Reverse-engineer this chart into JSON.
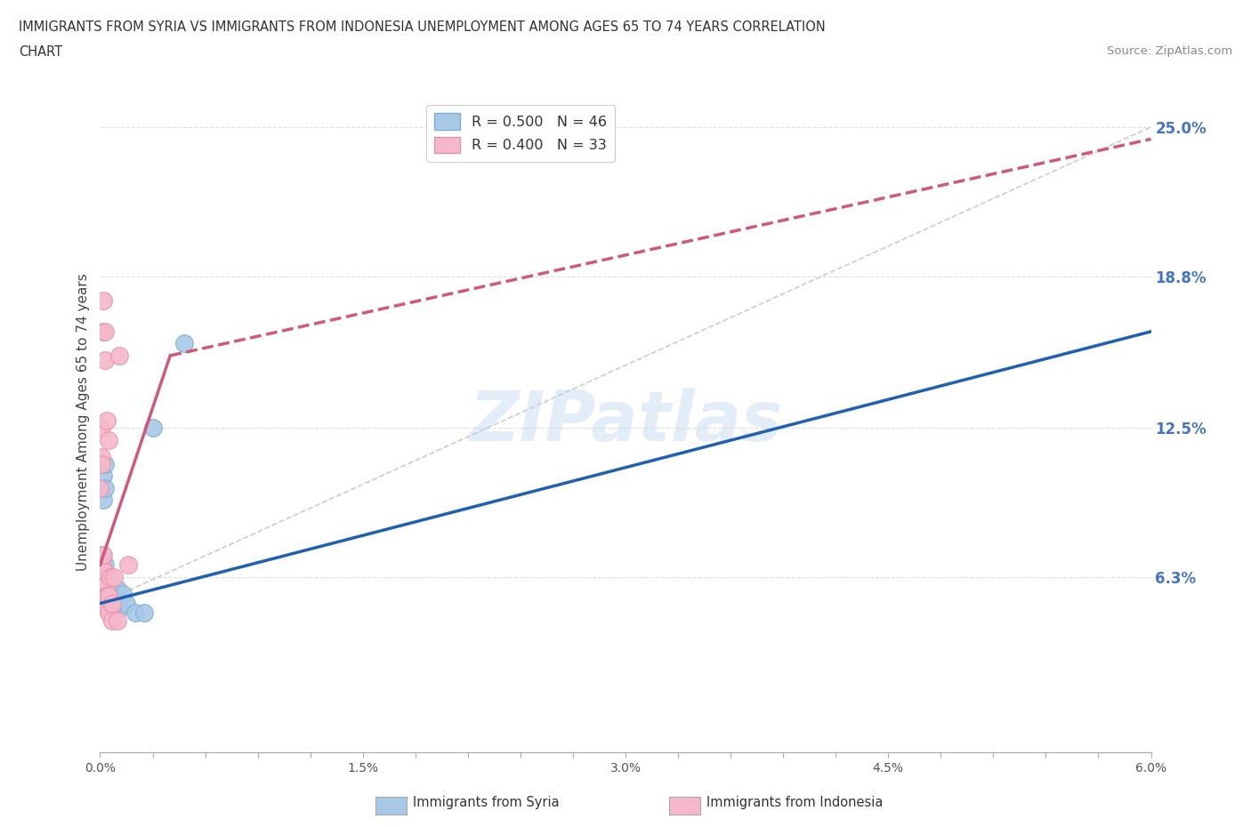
{
  "title_line1": "IMMIGRANTS FROM SYRIA VS IMMIGRANTS FROM INDONESIA UNEMPLOYMENT AMONG AGES 65 TO 74 YEARS CORRELATION",
  "title_line2": "CHART",
  "source": "Source: ZipAtlas.com",
  "ylabel": "Unemployment Among Ages 65 to 74 years",
  "xlim": [
    0.0,
    0.06
  ],
  "ylim": [
    -0.01,
    0.265
  ],
  "xtick_labels": [
    "0.0%",
    "",
    "",
    "",
    "",
    "1.5%",
    "",
    "",
    "",
    "",
    "3.0%",
    "",
    "",
    "",
    "",
    "4.5%",
    "",
    "",
    "",
    "",
    "6.0%"
  ],
  "xtick_vals": [
    0.0,
    0.003,
    0.006,
    0.009,
    0.012,
    0.015,
    0.018,
    0.021,
    0.024,
    0.027,
    0.03,
    0.033,
    0.036,
    0.039,
    0.042,
    0.045,
    0.048,
    0.051,
    0.054,
    0.057,
    0.06
  ],
  "ytick_labels_right": [
    "6.3%",
    "12.5%",
    "18.8%",
    "25.0%"
  ],
  "ytick_vals_right": [
    0.063,
    0.125,
    0.188,
    0.25
  ],
  "legend_syria_r": "R = 0.500",
  "legend_syria_n": "N = 46",
  "legend_indonesia_r": "R = 0.400",
  "legend_indonesia_n": "N = 33",
  "watermark": "ZIPatlas",
  "syria_color": "#a8c8e8",
  "syria_edge_color": "#7aaed4",
  "indonesia_color": "#f5b8ca",
  "indonesia_edge_color": "#e890aa",
  "syria_line_color": "#2060b0",
  "indonesia_line_color": "#d05878",
  "ref_line_color": "#cccccc",
  "bg_color": "#ffffff",
  "grid_color": "#dddddd",
  "title_color": "#333333",
  "right_tick_color": "#4472c4",
  "syria_scatter": [
    [
      0.0,
      0.06
    ],
    [
      0.0,
      0.065
    ],
    [
      0.0,
      0.058
    ],
    [
      0.0,
      0.055
    ],
    [
      0.0,
      0.062
    ],
    [
      0.0,
      0.052
    ],
    [
      0.0,
      0.068
    ],
    [
      0.0001,
      0.063
    ],
    [
      0.0001,
      0.06
    ],
    [
      0.0001,
      0.058
    ],
    [
      0.0001,
      0.055
    ],
    [
      0.0001,
      0.072
    ],
    [
      0.0001,
      0.068
    ],
    [
      0.0002,
      0.063
    ],
    [
      0.0002,
      0.058
    ],
    [
      0.0002,
      0.06
    ],
    [
      0.0002,
      0.065
    ],
    [
      0.0002,
      0.095
    ],
    [
      0.0002,
      0.105
    ],
    [
      0.0003,
      0.1
    ],
    [
      0.0003,
      0.11
    ],
    [
      0.0003,
      0.058
    ],
    [
      0.0003,
      0.062
    ],
    [
      0.0003,
      0.068
    ],
    [
      0.0004,
      0.055
    ],
    [
      0.0004,
      0.06
    ],
    [
      0.0004,
      0.063
    ],
    [
      0.0004,
      0.058
    ],
    [
      0.0005,
      0.055
    ],
    [
      0.0005,
      0.06
    ],
    [
      0.0005,
      0.058
    ],
    [
      0.0005,
      0.052
    ],
    [
      0.0006,
      0.052
    ],
    [
      0.0006,
      0.058
    ],
    [
      0.0006,
      0.055
    ],
    [
      0.0007,
      0.052
    ],
    [
      0.0008,
      0.05
    ],
    [
      0.0009,
      0.052
    ],
    [
      0.001,
      0.058
    ],
    [
      0.0011,
      0.05
    ],
    [
      0.0013,
      0.056
    ],
    [
      0.0015,
      0.052
    ],
    [
      0.002,
      0.048
    ],
    [
      0.0025,
      0.048
    ],
    [
      0.003,
      0.125
    ],
    [
      0.0048,
      0.16
    ]
  ],
  "indonesia_scatter": [
    [
      0.0,
      0.063
    ],
    [
      0.0,
      0.06
    ],
    [
      0.0,
      0.1
    ],
    [
      0.0001,
      0.113
    ],
    [
      0.0001,
      0.063
    ],
    [
      0.0001,
      0.068
    ],
    [
      0.0001,
      0.058
    ],
    [
      0.0001,
      0.11
    ],
    [
      0.0001,
      0.125
    ],
    [
      0.0002,
      0.06
    ],
    [
      0.0002,
      0.065
    ],
    [
      0.0002,
      0.072
    ],
    [
      0.0002,
      0.178
    ],
    [
      0.0002,
      0.165
    ],
    [
      0.0003,
      0.165
    ],
    [
      0.0003,
      0.153
    ],
    [
      0.0003,
      0.06
    ],
    [
      0.0003,
      0.065
    ],
    [
      0.0003,
      0.055
    ],
    [
      0.0004,
      0.06
    ],
    [
      0.0004,
      0.055
    ],
    [
      0.0004,
      0.05
    ],
    [
      0.0004,
      0.128
    ],
    [
      0.0005,
      0.12
    ],
    [
      0.0005,
      0.055
    ],
    [
      0.0005,
      0.048
    ],
    [
      0.0006,
      0.063
    ],
    [
      0.0007,
      0.052
    ],
    [
      0.0007,
      0.045
    ],
    [
      0.0008,
      0.063
    ],
    [
      0.001,
      0.045
    ],
    [
      0.0011,
      0.155
    ],
    [
      0.0016,
      0.068
    ]
  ],
  "syria_line": [
    [
      0.0,
      0.052
    ],
    [
      0.06,
      0.165
    ]
  ],
  "indonesia_line": [
    [
      0.0,
      0.068
    ],
    [
      0.004,
      0.155
    ]
  ],
  "indonesia_line_dashed": [
    [
      0.004,
      0.155
    ],
    [
      0.06,
      0.245
    ]
  ],
  "ref_line": [
    [
      0.0,
      0.052
    ],
    [
      0.06,
      0.25
    ]
  ]
}
